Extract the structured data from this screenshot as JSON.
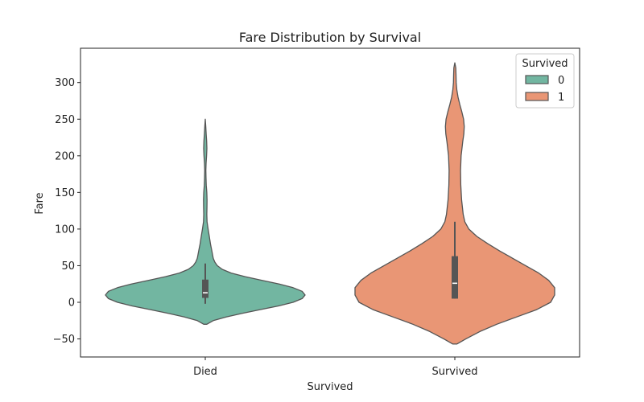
{
  "chart_data": {
    "type": "violin",
    "title": "Fare Distribution by Survival",
    "xlabel": "Survived",
    "ylabel": "Fare",
    "categories": [
      "Died",
      "Survived"
    ],
    "ylim": [
      -75,
      340
    ],
    "yticks": [
      -50,
      0,
      50,
      100,
      150,
      200,
      250,
      300
    ],
    "ytick_labels": [
      "−50",
      "0",
      "50",
      "100",
      "150",
      "200",
      "250",
      "300"
    ],
    "legend": {
      "title": "Survived",
      "placement": "top-right",
      "entries": [
        {
          "label": "0",
          "color": "#72b6a1"
        },
        {
          "label": "1",
          "color": "#e99675"
        }
      ]
    },
    "series": [
      {
        "category": "Died",
        "group": "0",
        "color": "#72b6a1",
        "range": [
          -30,
          250
        ],
        "box": {
          "q1": 6,
          "median": 13,
          "q3": 31,
          "whisker_low": -2,
          "whisker_high": 53
        },
        "density": [
          [
            -30,
            0.015
          ],
          [
            -25,
            0.08
          ],
          [
            -20,
            0.21
          ],
          [
            -15,
            0.37
          ],
          [
            -10,
            0.55
          ],
          [
            -5,
            0.73
          ],
          [
            0,
            0.88
          ],
          [
            5,
            0.97
          ],
          [
            10,
            1.0
          ],
          [
            15,
            0.97
          ],
          [
            20,
            0.88
          ],
          [
            25,
            0.74
          ],
          [
            30,
            0.57
          ],
          [
            35,
            0.4
          ],
          [
            40,
            0.26
          ],
          [
            45,
            0.17
          ],
          [
            50,
            0.12
          ],
          [
            55,
            0.095
          ],
          [
            60,
            0.08
          ],
          [
            70,
            0.066
          ],
          [
            80,
            0.052
          ],
          [
            90,
            0.04
          ],
          [
            100,
            0.028
          ],
          [
            110,
            0.018
          ],
          [
            120,
            0.015
          ],
          [
            130,
            0.017
          ],
          [
            140,
            0.018
          ],
          [
            150,
            0.015
          ],
          [
            160,
            0.01
          ],
          [
            170,
            0.007
          ],
          [
            180,
            0.006
          ],
          [
            190,
            0.008
          ],
          [
            200,
            0.013
          ],
          [
            210,
            0.016
          ],
          [
            220,
            0.014
          ],
          [
            230,
            0.009
          ],
          [
            240,
            0.005
          ],
          [
            250,
            0.0
          ]
        ]
      },
      {
        "category": "Survived",
        "group": "1",
        "color": "#e99675",
        "range": [
          -57,
          327
        ],
        "box": {
          "q1": 5,
          "median": 26,
          "q3": 63,
          "whisker_low": 5,
          "whisker_high": 110
        },
        "density": [
          [
            -57,
            0.02
          ],
          [
            -50,
            0.11
          ],
          [
            -40,
            0.25
          ],
          [
            -30,
            0.42
          ],
          [
            -20,
            0.62
          ],
          [
            -10,
            0.82
          ],
          [
            0,
            0.96
          ],
          [
            10,
            1.0
          ],
          [
            20,
            1.0
          ],
          [
            30,
            0.94
          ],
          [
            40,
            0.84
          ],
          [
            50,
            0.71
          ],
          [
            60,
            0.58
          ],
          [
            70,
            0.45
          ],
          [
            80,
            0.33
          ],
          [
            90,
            0.22
          ],
          [
            100,
            0.14
          ],
          [
            110,
            0.1
          ],
          [
            120,
            0.084
          ],
          [
            140,
            0.068
          ],
          [
            160,
            0.06
          ],
          [
            180,
            0.057
          ],
          [
            200,
            0.063
          ],
          [
            220,
            0.08
          ],
          [
            230,
            0.09
          ],
          [
            240,
            0.094
          ],
          [
            250,
            0.088
          ],
          [
            260,
            0.07
          ],
          [
            270,
            0.05
          ],
          [
            280,
            0.032
          ],
          [
            290,
            0.02
          ],
          [
            300,
            0.014
          ],
          [
            310,
            0.012
          ],
          [
            320,
            0.01
          ],
          [
            327,
            0.0
          ]
        ]
      }
    ]
  }
}
